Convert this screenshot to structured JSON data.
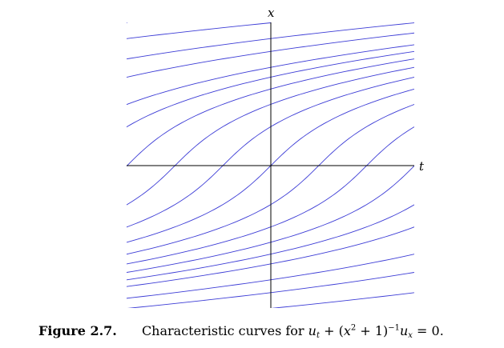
{
  "chart_data": {
    "type": "line",
    "title": "",
    "xlabel": "t",
    "ylabel": "x",
    "xlim": [
      -3,
      3
    ],
    "ylim": [
      -3,
      3
    ],
    "equation": "x^3/3 + x = t + c",
    "series_constants": [
      -22,
      -18,
      -15,
      -12,
      -9,
      -7,
      -5,
      -4,
      -3,
      -2,
      -1,
      0,
      1,
      2,
      3,
      4,
      5,
      7,
      9,
      12,
      15,
      18,
      22
    ],
    "line_color": "#3d3dd6",
    "axis_color": "#000000",
    "grid": false,
    "legend": "none"
  },
  "caption": {
    "label": "Figure 2.7.",
    "text_prefix": "Characteristic curves for ",
    "math": {
      "u1": "u",
      "sub_t": "t",
      "plus_open": " + (",
      "x1": "x",
      "sup2": "2",
      "plus_one": " + 1)",
      "sup_neg1": "−1",
      "u2": "u",
      "sub_x": "x",
      "equals": " = 0."
    }
  }
}
